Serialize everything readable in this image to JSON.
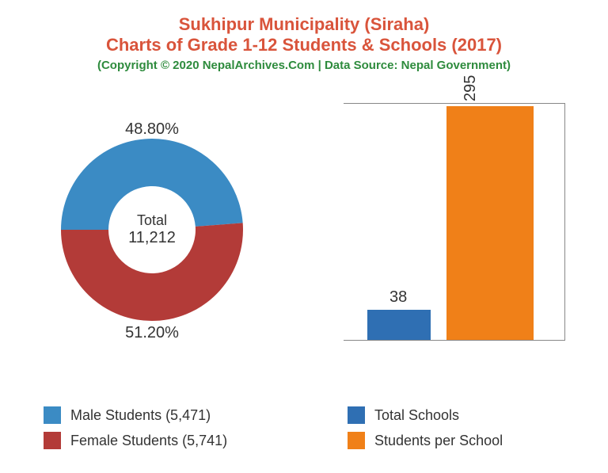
{
  "header": {
    "title_line1": "Sukhipur Municipality (Siraha)",
    "title_line2": "Charts of Grade 1-12 Students & Schools (2017)",
    "title_color": "#d9543b",
    "copyright": "(Copyright © 2020 NepalArchives.Com | Data Source: Nepal Government)",
    "copyright_color": "#2e8b3d"
  },
  "donut": {
    "male_pct": 48.8,
    "female_pct": 51.2,
    "male_pct_label": "48.80%",
    "female_pct_label": "51.20%",
    "center_label": "Total",
    "center_value": "11,212",
    "male_color": "#3b8bc4",
    "female_color": "#b33b38",
    "inner_radius": 55,
    "outer_radius": 115
  },
  "bar": {
    "type": "bar",
    "frame_border_color": "#888888",
    "max_value": 300,
    "bars": [
      {
        "label": "38",
        "value": 38,
        "color": "#2f6fb3"
      },
      {
        "label": "295",
        "value": 295,
        "color": "#f08018"
      }
    ]
  },
  "legend": {
    "left": [
      {
        "text": "Male Students (5,471)",
        "color": "#3b8bc4"
      },
      {
        "text": "Female Students (5,741)",
        "color": "#b33b38"
      }
    ],
    "right": [
      {
        "text": "Total Schools",
        "color": "#2f6fb3"
      },
      {
        "text": "Students per School",
        "color": "#f08018"
      }
    ]
  }
}
